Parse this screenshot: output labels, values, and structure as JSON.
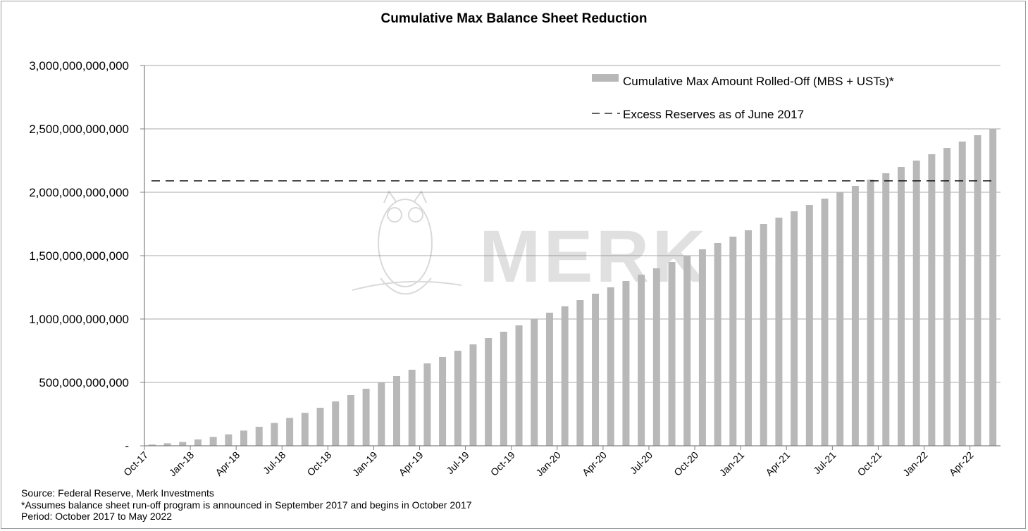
{
  "chart_data": {
    "type": "bar",
    "title": "Cumulative Max Balance Sheet Reduction",
    "xlabel": "",
    "ylabel": "",
    "ylim": [
      0,
      3000000000000
    ],
    "yticks": [
      0,
      500000000000,
      1000000000000,
      1500000000000,
      2000000000000,
      2500000000000,
      3000000000000
    ],
    "ytick_labels": [
      "-",
      "500,000,000,000",
      "1,000,000,000,000",
      "1,500,000,000,000",
      "2,000,000,000,000",
      "2,500,000,000,000",
      "3,000,000,000,000"
    ],
    "categories": [
      "Oct-17",
      "Nov-17",
      "Dec-17",
      "Jan-18",
      "Feb-18",
      "Mar-18",
      "Apr-18",
      "May-18",
      "Jun-18",
      "Jul-18",
      "Aug-18",
      "Sep-18",
      "Oct-18",
      "Nov-18",
      "Dec-18",
      "Jan-19",
      "Feb-19",
      "Mar-19",
      "Apr-19",
      "May-19",
      "Jun-19",
      "Jul-19",
      "Aug-19",
      "Sep-19",
      "Oct-19",
      "Nov-19",
      "Dec-19",
      "Jan-20",
      "Feb-20",
      "Mar-20",
      "Apr-20",
      "May-20",
      "Jun-20",
      "Jul-20",
      "Aug-20",
      "Sep-20",
      "Oct-20",
      "Nov-20",
      "Dec-20",
      "Jan-21",
      "Feb-21",
      "Mar-21",
      "Apr-21",
      "May-21",
      "Jun-21",
      "Jul-21",
      "Aug-21",
      "Sep-21",
      "Oct-21",
      "Nov-21",
      "Dec-21",
      "Jan-22",
      "Feb-22",
      "Mar-22",
      "Apr-22",
      "May-22"
    ],
    "x_tick_labels": [
      "Oct-17",
      "Jan-18",
      "Apr-18",
      "Jul-18",
      "Oct-18",
      "Jan-19",
      "Apr-19",
      "Jul-19",
      "Oct-19",
      "Jan-20",
      "Apr-20",
      "Jul-20",
      "Oct-20",
      "Jan-21",
      "Apr-21",
      "Jul-21",
      "Oct-21",
      "Jan-22",
      "Apr-22"
    ],
    "series": [
      {
        "name": "Cumulative Max Amount Rolled-Off (MBS + USTs)*",
        "type": "bar",
        "color": "#b8b8b8",
        "values": [
          10000000000,
          20000000000,
          30000000000,
          50000000000,
          70000000000,
          90000000000,
          120000000000,
          150000000000,
          180000000000,
          220000000000,
          260000000000,
          300000000000,
          350000000000,
          400000000000,
          450000000000,
          500000000000,
          550000000000,
          600000000000,
          650000000000,
          700000000000,
          750000000000,
          800000000000,
          850000000000,
          900000000000,
          950000000000,
          1000000000000,
          1050000000000,
          1100000000000,
          1150000000000,
          1200000000000,
          1250000000000,
          1300000000000,
          1350000000000,
          1400000000000,
          1450000000000,
          1500000000000,
          1550000000000,
          1600000000000,
          1650000000000,
          1700000000000,
          1750000000000,
          1800000000000,
          1850000000000,
          1900000000000,
          1950000000000,
          2000000000000,
          2050000000000,
          2100000000000,
          2150000000000,
          2200000000000,
          2250000000000,
          2300000000000,
          2350000000000,
          2400000000000,
          2450000000000,
          2500000000000
        ]
      },
      {
        "name": "Excess Reserves as of June 2017",
        "type": "line",
        "style": "dashed",
        "color": "#000000",
        "value": 2090000000000
      }
    ],
    "grid": true,
    "legend_position": "top-right",
    "watermark": "MERK",
    "notes": [
      "Source: Federal Reserve, Merk Investments",
      "*Assumes balance sheet run-off program is announced in September 2017 and begins in October 2017",
      "Period: October 2017 to May 2022"
    ]
  }
}
